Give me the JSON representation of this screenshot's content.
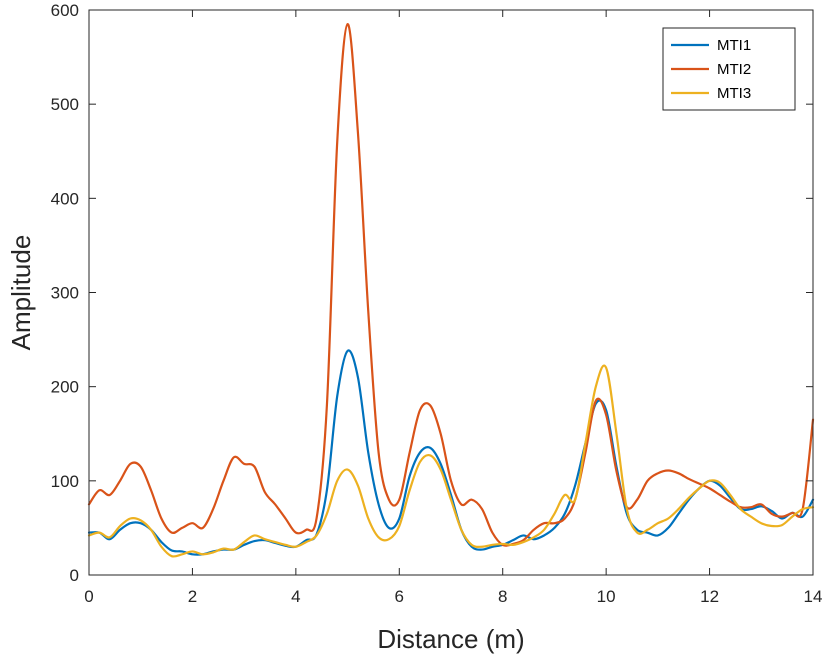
{
  "chart_data": {
    "type": "line",
    "title": "",
    "xlabel": "Distance (m)",
    "ylabel": "Amplitude",
    "xlim": [
      0,
      14
    ],
    "ylim": [
      0,
      600
    ],
    "xticks": [
      0,
      2,
      4,
      6,
      8,
      10,
      12,
      14
    ],
    "yticks": [
      0,
      100,
      200,
      300,
      400,
      500,
      600
    ],
    "grid": false,
    "legend_position": "top-right",
    "series": [
      {
        "name": "MTI1",
        "color": "#0072BD",
        "x": [
          0,
          0.2,
          0.4,
          0.6,
          0.8,
          1.0,
          1.2,
          1.4,
          1.6,
          1.8,
          2.0,
          2.2,
          2.4,
          2.6,
          2.8,
          3.0,
          3.2,
          3.4,
          3.6,
          3.8,
          4.0,
          4.2,
          4.4,
          4.6,
          4.8,
          5.0,
          5.2,
          5.4,
          5.6,
          5.8,
          6.0,
          6.2,
          6.4,
          6.6,
          6.8,
          7.0,
          7.2,
          7.4,
          7.6,
          7.8,
          8.0,
          8.2,
          8.4,
          8.6,
          8.8,
          9.0,
          9.2,
          9.4,
          9.6,
          9.8,
          10.0,
          10.2,
          10.4,
          10.6,
          10.8,
          11.0,
          11.2,
          11.4,
          11.6,
          11.8,
          12.0,
          12.2,
          12.4,
          12.6,
          12.8,
          13.0,
          13.2,
          13.4,
          13.6,
          13.8,
          14.0
        ],
        "values": [
          45,
          45,
          38,
          48,
          55,
          55,
          48,
          35,
          26,
          25,
          22,
          22,
          25,
          27,
          27,
          32,
          36,
          37,
          34,
          31,
          30,
          37,
          43,
          90,
          190,
          238,
          210,
          130,
          75,
          50,
          60,
          105,
          130,
          135,
          118,
          85,
          48,
          30,
          27,
          30,
          32,
          37,
          42,
          38,
          42,
          50,
          65,
          95,
          140,
          182,
          175,
          115,
          65,
          48,
          45,
          42,
          50,
          65,
          80,
          92,
          100,
          95,
          82,
          70,
          70,
          73,
          68,
          60,
          66,
          62,
          80
        ]
      },
      {
        "name": "MTI2",
        "color": "#D95319",
        "x": [
          0,
          0.2,
          0.4,
          0.6,
          0.8,
          1.0,
          1.2,
          1.4,
          1.6,
          1.8,
          2.0,
          2.2,
          2.4,
          2.6,
          2.8,
          3.0,
          3.2,
          3.4,
          3.6,
          3.8,
          4.0,
          4.2,
          4.4,
          4.6,
          4.8,
          5.0,
          5.2,
          5.4,
          5.6,
          5.8,
          6.0,
          6.2,
          6.4,
          6.6,
          6.8,
          7.0,
          7.2,
          7.4,
          7.6,
          7.8,
          8.0,
          8.2,
          8.4,
          8.6,
          8.8,
          9.0,
          9.2,
          9.4,
          9.6,
          9.8,
          10.0,
          10.2,
          10.4,
          10.6,
          10.8,
          11.0,
          11.2,
          11.4,
          11.6,
          11.8,
          12.0,
          12.2,
          12.4,
          12.6,
          12.8,
          13.0,
          13.2,
          13.4,
          13.6,
          13.8,
          14.0
        ],
        "values": [
          75,
          90,
          85,
          100,
          118,
          115,
          90,
          60,
          45,
          50,
          55,
          50,
          70,
          100,
          125,
          118,
          115,
          88,
          75,
          60,
          45,
          48,
          60,
          180,
          460,
          585,
          470,
          280,
          130,
          80,
          80,
          130,
          175,
          180,
          150,
          100,
          75,
          80,
          70,
          45,
          32,
          33,
          37,
          48,
          55,
          55,
          60,
          80,
          130,
          185,
          170,
          110,
          72,
          80,
          100,
          108,
          111,
          108,
          102,
          97,
          92,
          85,
          78,
          72,
          72,
          75,
          65,
          62,
          66,
          70,
          165
        ]
      },
      {
        "name": "MTI3",
        "color": "#EDB120",
        "x": [
          0,
          0.2,
          0.4,
          0.6,
          0.8,
          1.0,
          1.2,
          1.4,
          1.6,
          1.8,
          2.0,
          2.2,
          2.4,
          2.6,
          2.8,
          3.0,
          3.2,
          3.4,
          3.6,
          3.8,
          4.0,
          4.2,
          4.4,
          4.6,
          4.8,
          5.0,
          5.2,
          5.4,
          5.6,
          5.8,
          6.0,
          6.2,
          6.4,
          6.6,
          6.8,
          7.0,
          7.2,
          7.4,
          7.6,
          7.8,
          8.0,
          8.2,
          8.4,
          8.6,
          8.8,
          9.0,
          9.2,
          9.4,
          9.6,
          9.8,
          10.0,
          10.2,
          10.4,
          10.6,
          10.8,
          11.0,
          11.2,
          11.4,
          11.6,
          11.8,
          12.0,
          12.2,
          12.4,
          12.6,
          12.8,
          13.0,
          13.2,
          13.4,
          13.6,
          13.8,
          14.0
        ],
        "values": [
          42,
          45,
          40,
          52,
          60,
          58,
          48,
          30,
          20,
          22,
          25,
          22,
          24,
          28,
          27,
          35,
          42,
          38,
          35,
          32,
          30,
          35,
          42,
          65,
          100,
          112,
          95,
          60,
          40,
          38,
          52,
          90,
          120,
          127,
          112,
          80,
          48,
          32,
          30,
          32,
          33,
          32,
          35,
          40,
          48,
          65,
          85,
          80,
          140,
          200,
          220,
          150,
          70,
          45,
          48,
          55,
          60,
          70,
          82,
          92,
          100,
          98,
          85,
          70,
          62,
          55,
          52,
          53,
          62,
          70,
          72
        ]
      }
    ]
  }
}
